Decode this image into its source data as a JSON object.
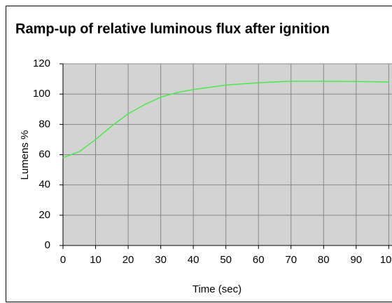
{
  "chart_data": {
    "type": "line",
    "title": "Ramp-up of relative luminous flux after ignition",
    "x_label": "Time (sec)",
    "y_label": "Lumens %",
    "series": [
      {
        "name": "Relative luminous flux",
        "color": "#44ee44",
        "x": [
          0,
          5,
          10,
          15,
          20,
          25,
          30,
          35,
          40,
          50,
          60,
          70,
          80,
          90,
          100
        ],
        "values": [
          58,
          62,
          70,
          79,
          87,
          93,
          98,
          101,
          103,
          106,
          107.5,
          108.5,
          108.5,
          108.3,
          108
        ]
      }
    ],
    "xlim": [
      0,
      101
    ],
    "xticks": [
      0,
      10,
      20,
      30,
      40,
      50,
      60,
      70,
      80,
      90,
      100
    ],
    "ylim": [
      0,
      120
    ],
    "yticks": [
      0,
      20,
      40,
      60,
      80,
      100,
      120
    ],
    "grid": true
  }
}
